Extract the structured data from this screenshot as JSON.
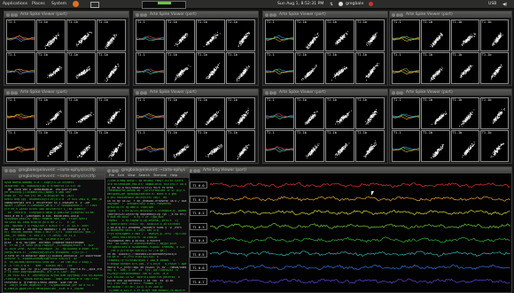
{
  "panel": {
    "applications": "Applications",
    "places": "Places",
    "system": "System",
    "clock": "Sun Aug  1,  8:52:31 PM",
    "user": "gregbale",
    "right_status": "USB"
  },
  "spike_viewer": {
    "title": "Arte Spike Viewer (port)",
    "label_a": "T1.1",
    "label_b": "T1.1b"
  },
  "terminals": {
    "front_title": "gregbale@elevent: ~/arte-ephys/src/lfp",
    "back_title": "gregbale@elevent: ~/arte-ephys/src/lfp",
    "mid_title": "gregbale@elevent: ~/arte-ephys",
    "menu": [
      "File",
      "Edit",
      "View",
      "Search",
      "Terminal",
      "Help"
    ]
  },
  "lfp_viewer": {
    "title": "Arte Eeg Viewer (port)",
    "channels": [
      "T1 0.0",
      "T1 0.1",
      "T1 0.2",
      "T1 0.3",
      "T1 0.4",
      "T1 0.5",
      "T1 0.6",
      "T1 0.7"
    ],
    "trace_colors": [
      "#e03030",
      "#e8a020",
      "#d8d830",
      "#70c830",
      "#30b030",
      "#30b0b0",
      "#3070e0",
      "#6040d0"
    ]
  },
  "colors": {
    "panel_bg": "#2c2c2a",
    "desktop": "#141414",
    "terminal_text": "#2cd12c"
  }
}
